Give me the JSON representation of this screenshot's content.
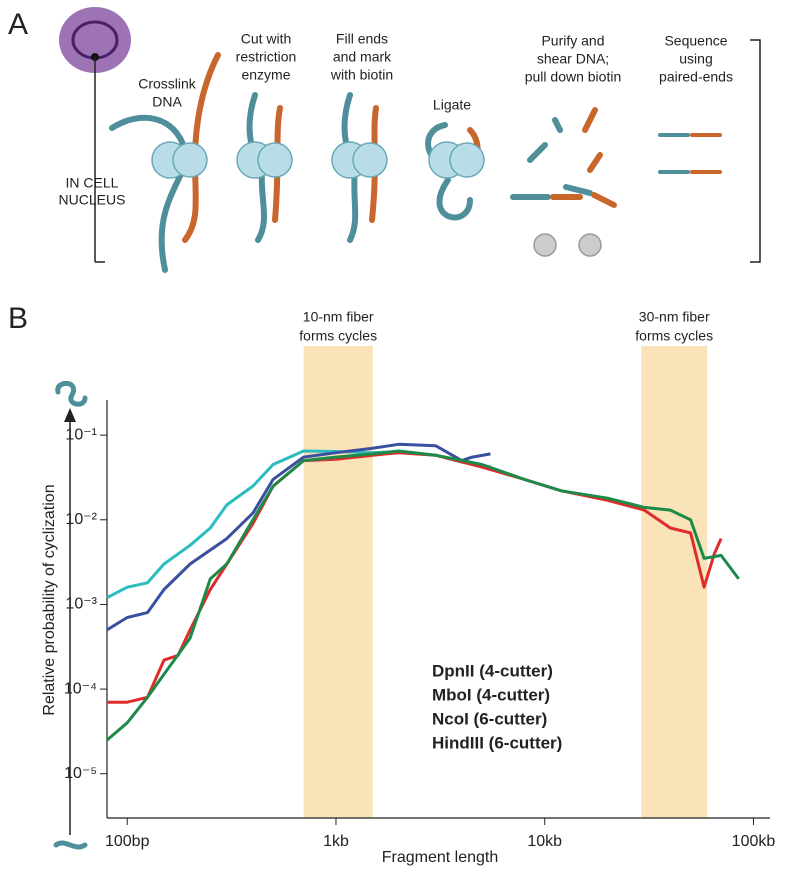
{
  "panel_labels": [
    "A",
    "B"
  ],
  "panel_a": {
    "location_label": [
      "IN CELL",
      "NUCLEUS"
    ],
    "steps": [
      {
        "lines": [
          "Crosslink",
          "DNA"
        ]
      },
      {
        "lines": [
          "Cut with",
          "restriction",
          "enzyme"
        ]
      },
      {
        "lines": [
          "Fill ends",
          "and mark",
          "with biotin"
        ]
      },
      {
        "lines": [
          "Ligate"
        ]
      },
      {
        "lines": [
          "Purify and",
          "shear DNA;",
          "pull down biotin"
        ]
      },
      {
        "lines": [
          "Sequence",
          "using",
          "paired-ends"
        ]
      }
    ]
  },
  "chart_data": {
    "type": "line",
    "xlabel": "Fragment length",
    "ylabel": "Relative probability of cyclization",
    "xscale": "log",
    "yscale": "log",
    "xlim": [
      80,
      120000
    ],
    "ylim": [
      3e-06,
      0.26
    ],
    "xticks": [
      {
        "value": 100,
        "label": "100bp"
      },
      {
        "value": 1000,
        "label": "1kb"
      },
      {
        "value": 10000,
        "label": "10kb"
      },
      {
        "value": 100000,
        "label": "100kb"
      }
    ],
    "yticks": [
      {
        "value": 1e-05,
        "label": "10⁻⁵"
      },
      {
        "value": 0.0001,
        "label": "10⁻⁴"
      },
      {
        "value": 0.001,
        "label": "10⁻³"
      },
      {
        "value": 0.01,
        "label": "10⁻²"
      },
      {
        "value": 0.1,
        "label": "10⁻¹"
      }
    ],
    "legend": "lower center",
    "bands": [
      {
        "label_lines": [
          "10-nm fiber",
          "forms cycles"
        ],
        "xrange": [
          700,
          1500
        ],
        "color": "#fae3b8"
      },
      {
        "label_lines": [
          "30-nm fiber",
          "forms cycles"
        ],
        "xrange": [
          29000,
          60000
        ],
        "color": "#fae3b8"
      }
    ],
    "series": [
      {
        "name": "DpnII (4-cutter)",
        "color": "#2bbcbf",
        "x": [
          80,
          100,
          125,
          150,
          200,
          250,
          300,
          400,
          500,
          700,
          1000,
          1500,
          2000,
          3000,
          4000,
          5500
        ],
        "values": [
          0.0012,
          0.0016,
          0.0018,
          0.003,
          0.005,
          0.008,
          0.015,
          0.025,
          0.045,
          0.065,
          0.064,
          0.062,
          0.064,
          0.058,
          0.048,
          0.042
        ]
      },
      {
        "name": "MboI (4-cutter)",
        "color": "#3a4fa0",
        "x": [
          80,
          100,
          125,
          150,
          200,
          300,
          400,
          500,
          700,
          1000,
          1500,
          2000,
          3000,
          4000,
          4500,
          5500
        ],
        "values": [
          0.0005,
          0.0007,
          0.0008,
          0.0015,
          0.003,
          0.006,
          0.012,
          0.03,
          0.055,
          0.062,
          0.07,
          0.078,
          0.075,
          0.05,
          0.055,
          0.06
        ]
      },
      {
        "name": "NcoI (6-cutter)",
        "color": "#e02b2b",
        "x": [
          80,
          100,
          125,
          150,
          175,
          200,
          250,
          300,
          400,
          500,
          700,
          1000,
          1500,
          2000,
          3000,
          5000,
          8000,
          12000,
          20000,
          30000,
          40000,
          50000,
          58000,
          65000,
          70000
        ],
        "values": [
          7e-05,
          7e-05,
          8e-05,
          0.00022,
          0.00025,
          0.0005,
          0.0015,
          0.003,
          0.009,
          0.025,
          0.05,
          0.052,
          0.058,
          0.062,
          0.058,
          0.042,
          0.03,
          0.022,
          0.017,
          0.013,
          0.008,
          0.007,
          0.0016,
          0.004,
          0.006
        ]
      },
      {
        "name": "HindIII (6-cutter)",
        "color": "#1e8a4a",
        "x": [
          80,
          100,
          125,
          150,
          200,
          250,
          300,
          400,
          500,
          700,
          1000,
          1500,
          2000,
          3000,
          5000,
          8000,
          12000,
          20000,
          30000,
          40000,
          50000,
          58000,
          70000,
          85000
        ],
        "values": [
          2.5e-05,
          4e-05,
          8e-05,
          0.00015,
          0.0004,
          0.002,
          0.003,
          0.01,
          0.025,
          0.05,
          0.055,
          0.06,
          0.065,
          0.058,
          0.045,
          0.03,
          0.022,
          0.018,
          0.014,
          0.013,
          0.01,
          0.0035,
          0.0038,
          0.002
        ]
      }
    ]
  }
}
